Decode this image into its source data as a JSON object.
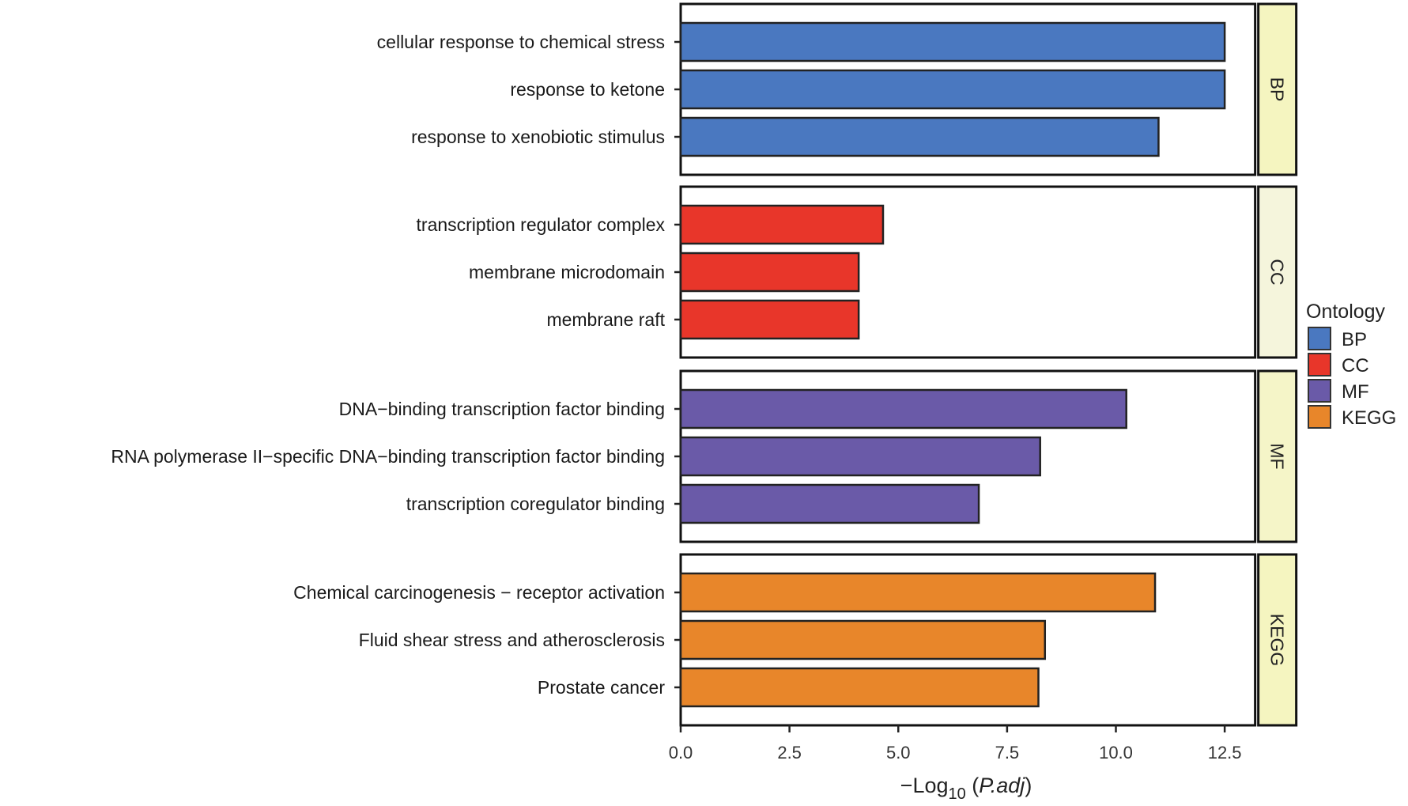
{
  "chart_data": {
    "type": "bar",
    "orientation": "horizontal",
    "xlabel_prefix": "−Log",
    "xlabel_sub": "10",
    "xlabel_italic": "P.adj",
    "xlim": [
      0,
      13.2
    ],
    "xticks": [
      "0.0",
      "2.5",
      "5.0",
      "7.5",
      "10.0",
      "12.5"
    ],
    "xtick_values": [
      0,
      2.5,
      5,
      7.5,
      10,
      12.5
    ],
    "legend": {
      "title": "Ontology",
      "placement": "right",
      "entries": [
        {
          "label": "BP",
          "color": "#4a78c0"
        },
        {
          "label": "CC",
          "color": "#e8362a"
        },
        {
          "label": "MF",
          "color": "#6a5aa8"
        },
        {
          "label": "KEGG",
          "color": "#e8862a"
        }
      ]
    },
    "facets": [
      {
        "name": "BP",
        "color": "#4a78c0",
        "strip_color": "#f5f5c0",
        "terms": [
          "cellular response to chemical stress",
          "response to ketone",
          "response to xenobiotic stimulus"
        ],
        "values": [
          12.5,
          12.5,
          10.98
        ]
      },
      {
        "name": "CC",
        "color": "#e8362a",
        "strip_color": "#f5f5dc",
        "terms": [
          "transcription regulator complex",
          "membrane microdomain",
          "membrane raft"
        ],
        "values": [
          4.65,
          4.09,
          4.09
        ]
      },
      {
        "name": "MF",
        "color": "#6a5aa8",
        "strip_color": "#f5f5c8",
        "terms": [
          "DNA−binding transcription factor binding",
          "RNA polymerase II−specific DNA−binding transcription factor binding",
          "transcription coregulator binding"
        ],
        "values": [
          10.24,
          8.26,
          6.85
        ]
      },
      {
        "name": "KEGG",
        "color": "#e8862a",
        "strip_color": "#f5f5c0",
        "terms": [
          "Chemical carcinogenesis − receptor activation",
          "Fluid shear stress and atherosclerosis",
          "Prostate cancer"
        ],
        "values": [
          10.9,
          8.37,
          8.22
        ]
      }
    ]
  }
}
